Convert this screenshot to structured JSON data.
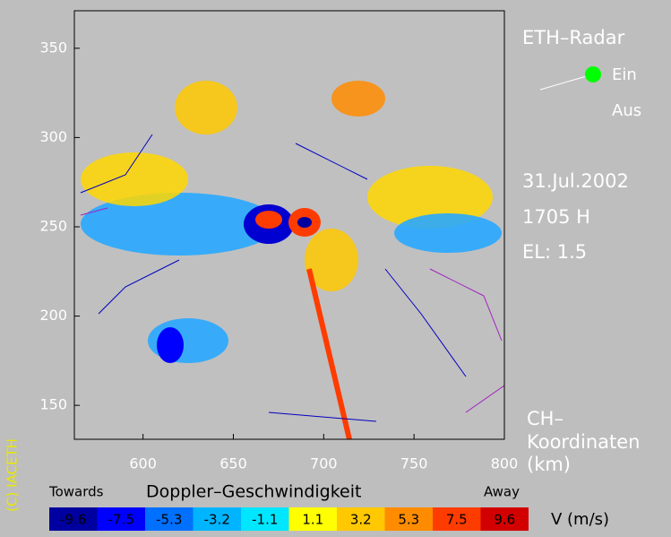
{
  "map": {
    "xlim": [
      562,
      800
    ],
    "ylim": [
      131,
      371
    ],
    "xticks": [
      600,
      650,
      700,
      750,
      800
    ],
    "yticks": [
      150,
      200,
      250,
      300,
      350
    ]
  },
  "side_panel": {
    "title": "ETH–Radar",
    "on": "Ein",
    "off": "Aus",
    "date": "31.Jul.2002",
    "time": "1705 H",
    "elevation": "EL: 1.5",
    "axis_label": [
      "CH–",
      "Koordinaten",
      "(km)"
    ]
  },
  "copyright": "(C) IACETH",
  "legend": {
    "title": "Doppler–Geschwindigkeit",
    "left": "Towards",
    "right": "Away",
    "unit": "V  (m/s)",
    "values": [
      -9.6,
      -7.5,
      -5.3,
      -3.2,
      -1.1,
      1.1,
      3.2,
      5.3,
      7.5,
      9.6
    ],
    "colors": [
      "#0000a0",
      "#0000ff",
      "#0070ff",
      "#00b4ff",
      "#00e6ff",
      "#ffff00",
      "#ffc800",
      "#ff8c00",
      "#ff3c00",
      "#d20000"
    ]
  }
}
